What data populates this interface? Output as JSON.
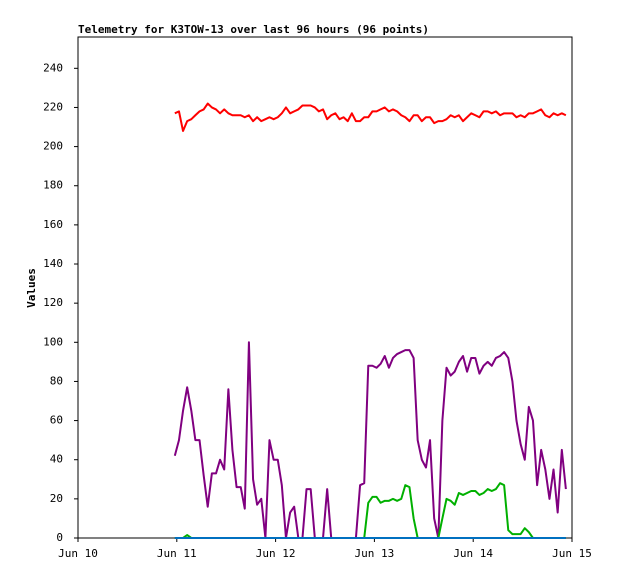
{
  "chart_data": {
    "type": "line",
    "title": "Telemetry for K3TOW-13 over last 96 hours (96 points)",
    "y_label": "Values",
    "xlim": [
      10,
      15
    ],
    "xticks": [
      {
        "value": 10,
        "label": "Jun 10"
      },
      {
        "value": 11,
        "label": "Jun 11"
      },
      {
        "value": 12,
        "label": "Jun 12"
      },
      {
        "value": 13,
        "label": "Jun 13"
      },
      {
        "value": 14,
        "label": "Jun 14"
      },
      {
        "value": 15,
        "label": "Jun 15"
      }
    ],
    "ylim": [
      0,
      256
    ],
    "yticks": [
      0,
      20,
      40,
      60,
      80,
      100,
      120,
      140,
      160,
      180,
      200,
      220,
      240
    ],
    "x": [
      10.98,
      11.022,
      11.063,
      11.105,
      11.147,
      11.188,
      11.23,
      11.272,
      11.313,
      11.355,
      11.397,
      11.438,
      11.48,
      11.522,
      11.563,
      11.605,
      11.647,
      11.688,
      11.73,
      11.772,
      11.813,
      11.855,
      11.897,
      11.938,
      11.98,
      12.022,
      12.063,
      12.105,
      12.147,
      12.188,
      12.23,
      12.272,
      12.313,
      12.355,
      12.397,
      12.438,
      12.48,
      12.522,
      12.563,
      12.605,
      12.647,
      12.688,
      12.73,
      12.772,
      12.813,
      12.855,
      12.897,
      12.938,
      12.98,
      13.022,
      13.063,
      13.105,
      13.147,
      13.188,
      13.23,
      13.272,
      13.313,
      13.355,
      13.397,
      13.438,
      13.48,
      13.522,
      13.563,
      13.605,
      13.647,
      13.688,
      13.73,
      13.772,
      13.813,
      13.855,
      13.897,
      13.938,
      13.98,
      14.022,
      14.063,
      14.105,
      14.147,
      14.188,
      14.23,
      14.272,
      14.313,
      14.355,
      14.397,
      14.438,
      14.48,
      14.522,
      14.563,
      14.605,
      14.647,
      14.688,
      14.73,
      14.772,
      14.813,
      14.855,
      14.897,
      14.938
    ],
    "series": [
      {
        "color": "#800080",
        "values": [
          42,
          50,
          65,
          77,
          65,
          50,
          50,
          32,
          16,
          33,
          33,
          40,
          35,
          76,
          45,
          26,
          26,
          15,
          100,
          30,
          17,
          20,
          0,
          50,
          40,
          40,
          27,
          0,
          13,
          16,
          0,
          0,
          25,
          25,
          0,
          0,
          0,
          25,
          0,
          0,
          0,
          0,
          0,
          0,
          0,
          27,
          28,
          88,
          88,
          87,
          89,
          93,
          87,
          92,
          94,
          95,
          96,
          96,
          92,
          50,
          40,
          36,
          50,
          10,
          0,
          60,
          87,
          83,
          85,
          90,
          93,
          85,
          92,
          92,
          84,
          88,
          90,
          88,
          92,
          93,
          95,
          92,
          80,
          60,
          48,
          40,
          67,
          60,
          27,
          45,
          35,
          20,
          35,
          13,
          45,
          25
        ]
      },
      {
        "color": "#ff0000",
        "values": [
          217,
          218,
          208,
          213,
          214,
          216,
          218,
          219,
          222,
          220,
          219,
          217,
          219,
          217,
          216,
          216,
          216,
          215,
          216,
          213,
          215,
          213,
          214,
          215,
          214,
          215,
          217,
          220,
          217,
          218,
          219,
          221,
          221,
          221,
          220,
          218,
          219,
          214,
          216,
          217,
          214,
          215,
          213,
          217,
          213,
          213,
          215,
          215,
          218,
          218,
          219,
          220,
          218,
          219,
          218,
          216,
          215,
          213,
          216,
          216,
          213,
          215,
          215,
          212,
          213,
          213,
          214,
          216,
          215,
          216,
          213,
          215,
          217,
          216,
          215,
          218,
          218,
          217,
          218,
          216,
          217,
          217,
          217,
          215,
          216,
          215,
          217,
          217,
          218,
          219,
          216,
          215,
          217,
          216,
          217,
          216
        ]
      },
      {
        "color": "#00b000",
        "values": [
          0,
          0,
          0,
          1.5,
          0,
          0,
          0,
          0,
          0,
          0,
          0,
          0,
          0,
          0,
          0,
          0,
          0,
          0,
          0,
          0,
          0,
          0,
          0,
          0,
          0,
          0,
          0,
          0,
          0,
          0,
          0,
          0,
          0,
          0,
          0,
          0,
          0,
          0,
          0,
          0,
          0,
          0,
          0,
          0,
          0,
          0,
          0,
          18,
          21,
          21,
          18,
          19,
          19,
          20,
          19,
          20,
          27,
          26,
          10,
          0,
          0,
          0,
          0,
          0,
          0,
          10,
          20,
          19,
          17,
          23,
          22,
          23,
          24,
          24,
          22,
          23,
          25,
          24,
          25,
          28,
          27,
          4,
          2,
          2,
          2,
          5,
          3,
          0,
          0,
          0,
          0,
          0,
          0,
          0,
          0,
          0
        ]
      },
      {
        "color": "#0070c0",
        "values": [
          0,
          0,
          0,
          0,
          0,
          0,
          0,
          0,
          0,
          0,
          0,
          0,
          0,
          0,
          0,
          0,
          0,
          0,
          0,
          0,
          0,
          0,
          0,
          0,
          0,
          0,
          0,
          0,
          0,
          0,
          0,
          0,
          0,
          0,
          0,
          0,
          0,
          0,
          0,
          0,
          0,
          0,
          0,
          0,
          0,
          0,
          0,
          0,
          0,
          0,
          0,
          0,
          0,
          0,
          0,
          0,
          0,
          0,
          0,
          0,
          0,
          0,
          0,
          0,
          0,
          0,
          0,
          0,
          0,
          0,
          0,
          0,
          0,
          0,
          0,
          0,
          0,
          0,
          0,
          0,
          0,
          0,
          0,
          0,
          0,
          0,
          0,
          0,
          0,
          0,
          0,
          0,
          0,
          0,
          0,
          0
        ]
      }
    ]
  }
}
